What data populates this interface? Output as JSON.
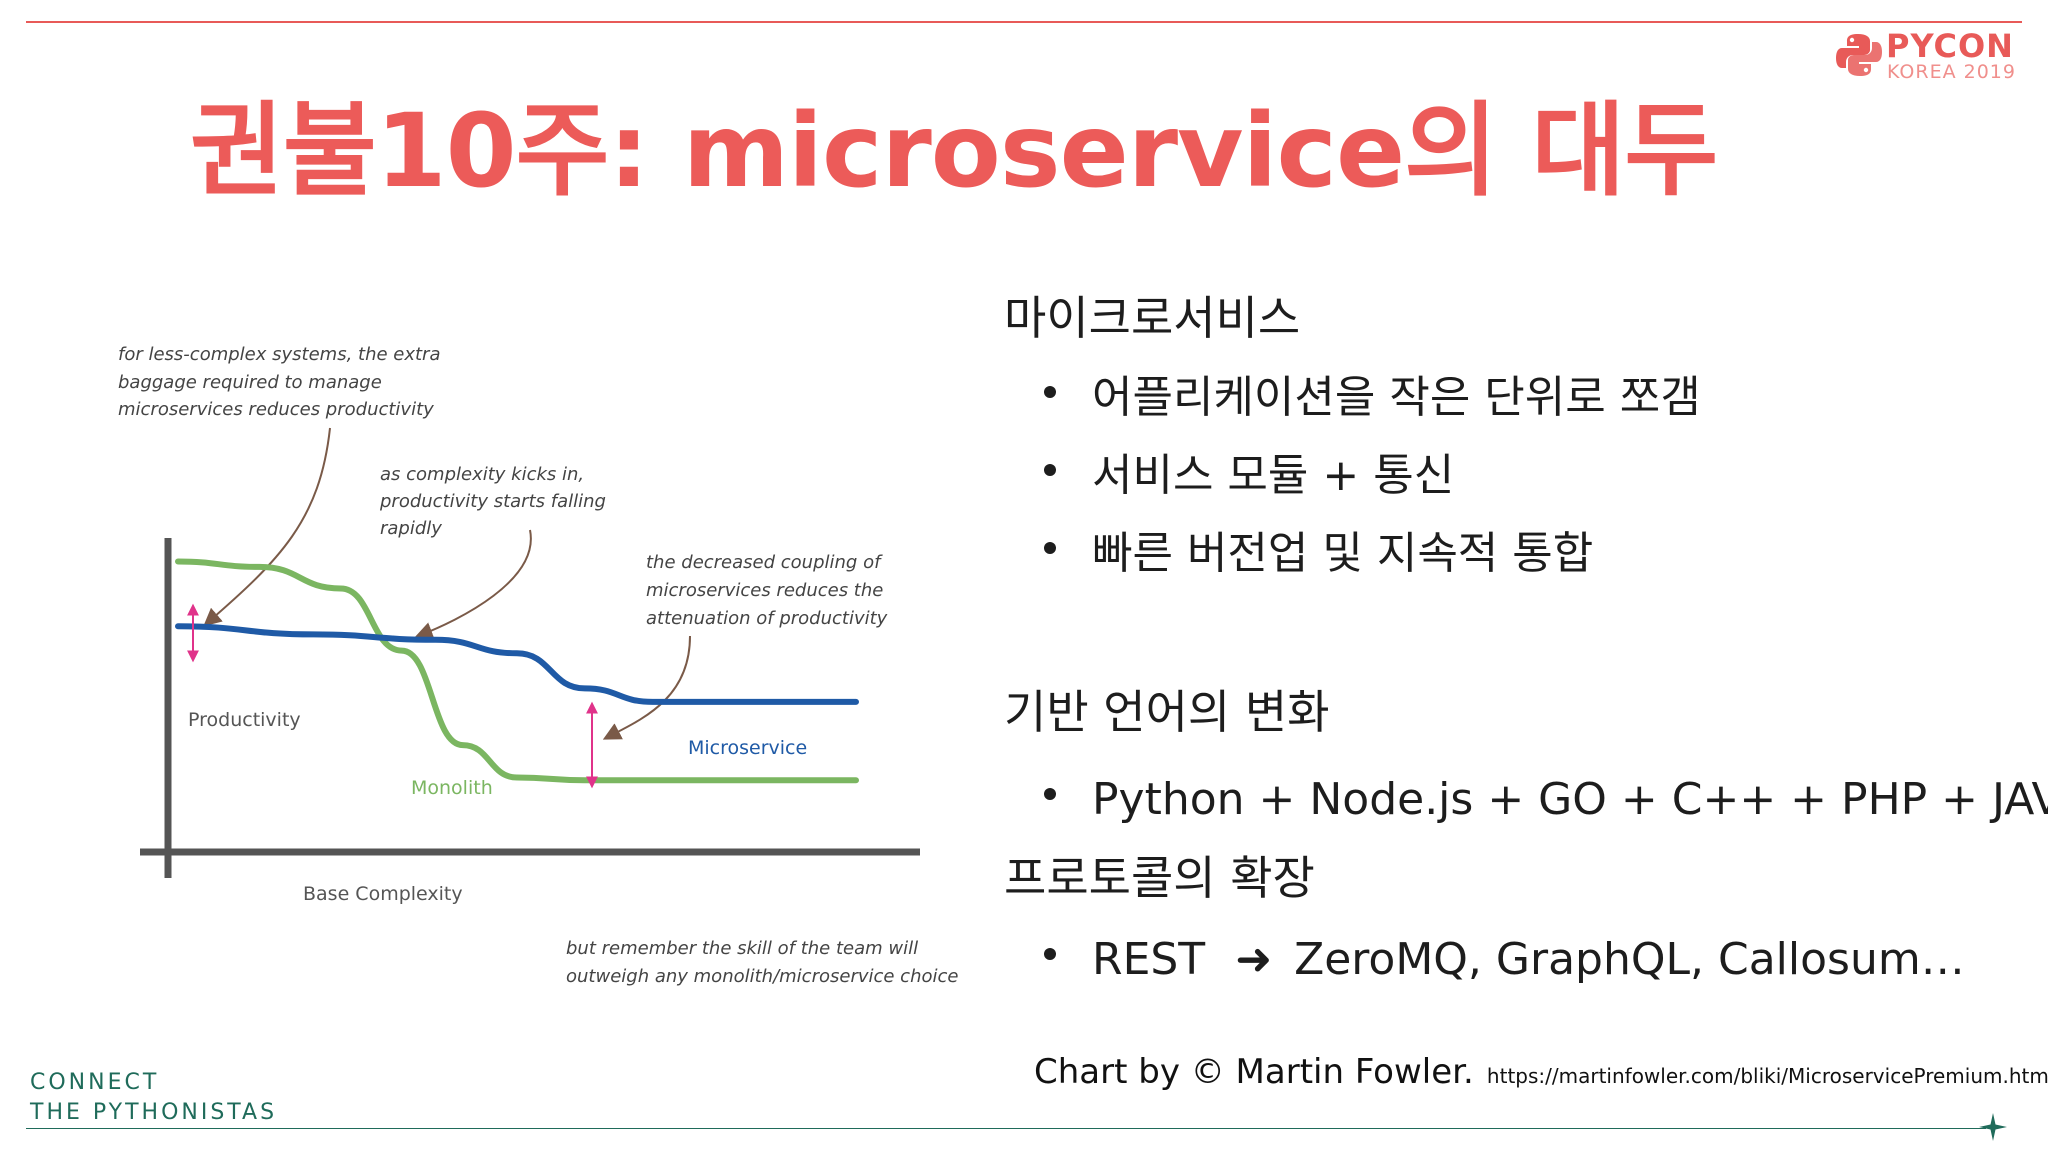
{
  "logo": {
    "title": "PYCON",
    "subtitle": "KOREA 2019"
  },
  "title": "권불10주: microservice의 대두",
  "chart_data": {
    "type": "line",
    "xlabel": "Base Complexity",
    "ylabel": "Productivity",
    "series": [
      {
        "name": "Monolith",
        "color": "#7bb661",
        "points": [
          [
            0,
            0.95
          ],
          [
            0.12,
            0.93
          ],
          [
            0.24,
            0.85
          ],
          [
            0.33,
            0.62
          ],
          [
            0.42,
            0.27
          ],
          [
            0.5,
            0.15
          ],
          [
            0.6,
            0.14
          ],
          [
            1.0,
            0.14
          ]
        ]
      },
      {
        "name": "Microservice",
        "color": "#1f5aa6",
        "points": [
          [
            0,
            0.71
          ],
          [
            0.2,
            0.68
          ],
          [
            0.38,
            0.66
          ],
          [
            0.5,
            0.61
          ],
          [
            0.6,
            0.48
          ],
          [
            0.7,
            0.43
          ],
          [
            1.0,
            0.43
          ]
        ]
      }
    ],
    "annotations": [
      "for less-complex systems, the extra baggage required to manage microservices reduces productivity",
      "as complexity kicks in, productivity starts falling rapidly",
      "the decreased coupling of microservices reduces the attenuation of productivity",
      "but remember the skill of the team will outweigh any monolith/microservice choice"
    ]
  },
  "section1": {
    "heading": "마이크로서비스",
    "bullets": [
      "어플리케이션을 작은 단위로 쪼갬",
      "서비스 모듈 + 통신",
      "빠른 버전업 및 지속적 통합"
    ]
  },
  "section2": {
    "heading": "기반 언어의 변화",
    "bullets": [
      "Python + Node.js + GO + C++ + PHP + JAVA…"
    ]
  },
  "section3": {
    "heading": "프로토콜의 확장",
    "bullet_left": "REST",
    "bullet_arrow": "➜",
    "bullet_right": "ZeroMQ, GraphQL, Callosum…"
  },
  "credit": {
    "text": "Chart by © Martin Fowler.",
    "url": "https://martinfowler.com/bliki/MicroservicePremium.html"
  },
  "footer": {
    "line1": "CONNECT",
    "line2": "THE PYTHONISTAS"
  },
  "colors": {
    "accent": "#ec5b59",
    "brand_green": "#1f6b5a",
    "monolith": "#7bb661",
    "microservice": "#1f5aa6",
    "annotation_arrow": "#7a5a48",
    "gap_marker": "#e0338a"
  }
}
